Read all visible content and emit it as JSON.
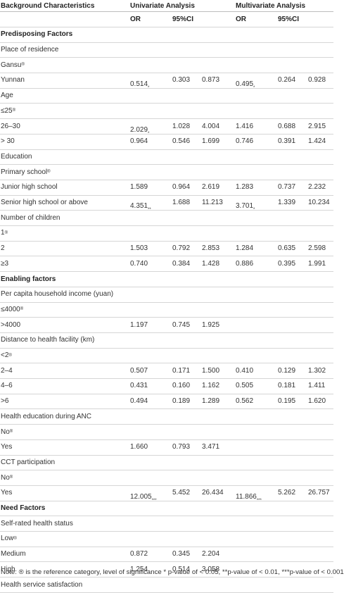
{
  "header": {
    "background": "Background Characteristics",
    "univariate": "Univariate Analysis",
    "multivariate": "Multivariate Analysis",
    "or_label": "OR",
    "ci_label": "95%CI"
  },
  "rows": [
    {
      "type": "group",
      "label": "Predisposing Factors"
    },
    {
      "type": "var",
      "label": "Place of residence"
    },
    {
      "type": "ref",
      "label": "Gansu",
      "sup": "®"
    },
    {
      "type": "data",
      "label": "Yunnan",
      "u_or": "0.514",
      "u_sig": "*",
      "u_lo": "0.303",
      "u_hi": "0.873",
      "m_or": "0.495",
      "m_sig": "*",
      "m_lo": "0.264",
      "m_hi": "0.928"
    },
    {
      "type": "var",
      "label": "Age"
    },
    {
      "type": "ref",
      "label": "≤25",
      "sup": "®"
    },
    {
      "type": "data",
      "label": "26–30",
      "u_or": "2.029",
      "u_sig": "*",
      "u_lo": "1.028",
      "u_hi": "4.004",
      "m_or": "1.416",
      "m_sig": "",
      "m_lo": "0.688",
      "m_hi": "2.915"
    },
    {
      "type": "data",
      "label": "> 30",
      "u_or": "0.964",
      "u_sig": "",
      "u_lo": "0.546",
      "u_hi": "1.699",
      "m_or": "0.746",
      "m_sig": "",
      "m_lo": "0.391",
      "m_hi": "1.424"
    },
    {
      "type": "var",
      "label": "Education"
    },
    {
      "type": "ref",
      "label": "Primary school",
      "sup": "®"
    },
    {
      "type": "data",
      "label": "Junior high school",
      "u_or": "1.589",
      "u_sig": "",
      "u_lo": "0.964",
      "u_hi": "2.619",
      "m_or": "1.283",
      "m_sig": "",
      "m_lo": "0.737",
      "m_hi": "2.232"
    },
    {
      "type": "data",
      "label": "Senior high school or above",
      "u_or": "4.351",
      "u_sig": "**",
      "u_lo": "1.688",
      "u_hi": "11.213",
      "m_or": "3.701",
      "m_sig": "*",
      "m_lo": "1.339",
      "m_hi": "10.234"
    },
    {
      "type": "var",
      "label": "Number of children"
    },
    {
      "type": "ref",
      "label": "1",
      "sup": "®"
    },
    {
      "type": "data",
      "label": "2",
      "u_or": "1.503",
      "u_sig": "",
      "u_lo": "0.792",
      "u_hi": "2.853",
      "m_or": "1.284",
      "m_sig": "",
      "m_lo": "0.635",
      "m_hi": "2.598"
    },
    {
      "type": "data",
      "label": "≥3",
      "u_or": "0.740",
      "u_sig": "",
      "u_lo": "0.384",
      "u_hi": "1.428",
      "m_or": "0.886",
      "m_sig": "",
      "m_lo": "0.395",
      "m_hi": "1.991"
    },
    {
      "type": "group",
      "label": "Enabling factors"
    },
    {
      "type": "var",
      "label": "Per capita household income (yuan)"
    },
    {
      "type": "ref",
      "label": "≤4000",
      "sup": "®"
    },
    {
      "type": "data",
      "label": ">4000",
      "u_or": "1.197",
      "u_sig": "",
      "u_lo": "0.745",
      "u_hi": "1.925",
      "m_or": "",
      "m_sig": "",
      "m_lo": "",
      "m_hi": ""
    },
    {
      "type": "var",
      "label": "Distance to health facility (km)"
    },
    {
      "type": "ref",
      "label": "<2",
      "sup": "®"
    },
    {
      "type": "data",
      "label": "2–4",
      "u_or": "0.507",
      "u_sig": "",
      "u_lo": "0.171",
      "u_hi": "1.500",
      "m_or": "0.410",
      "m_sig": "",
      "m_lo": "0.129",
      "m_hi": "1.302"
    },
    {
      "type": "data",
      "label": "4–6",
      "u_or": "0.431",
      "u_sig": "",
      "u_lo": "0.160",
      "u_hi": "1.162",
      "m_or": "0.505",
      "m_sig": "",
      "m_lo": "0.181",
      "m_hi": "1.411"
    },
    {
      "type": "data",
      "label": ">6",
      "u_or": "0.494",
      "u_sig": "",
      "u_lo": "0.189",
      "u_hi": "1.289",
      "m_or": "0.562",
      "m_sig": "",
      "m_lo": "0.195",
      "m_hi": "1.620"
    },
    {
      "type": "var",
      "label": "Health education during ANC"
    },
    {
      "type": "ref",
      "label": "No",
      "sup": "®"
    },
    {
      "type": "data",
      "label": "Yes",
      "u_or": "1.660",
      "u_sig": "",
      "u_lo": "0.793",
      "u_hi": "3.471",
      "m_or": "",
      "m_sig": "",
      "m_lo": "",
      "m_hi": ""
    },
    {
      "type": "var",
      "label": "CCT participation"
    },
    {
      "type": "ref",
      "label": "No",
      "sup": "®"
    },
    {
      "type": "data",
      "label": "Yes",
      "u_or": "12.005",
      "u_sig": "***",
      "u_lo": "5.452",
      "u_hi": "26.434",
      "m_or": "11.866",
      "m_sig": "***",
      "m_lo": "5.262",
      "m_hi": "26.757"
    },
    {
      "type": "group",
      "label": "Need Factors"
    },
    {
      "type": "var",
      "label": "Self-rated health status"
    },
    {
      "type": "ref",
      "label": "Low",
      "sup": "®"
    },
    {
      "type": "data",
      "label": "Medium",
      "u_or": "0.872",
      "u_sig": "",
      "u_lo": "0.345",
      "u_hi": "2.204",
      "m_or": "",
      "m_sig": "",
      "m_lo": "",
      "m_hi": ""
    },
    {
      "type": "data",
      "label": "High",
      "u_or": "1.254",
      "u_sig": "",
      "u_lo": "0.514",
      "u_hi": "3.058",
      "m_or": "",
      "m_sig": "",
      "m_lo": "",
      "m_hi": ""
    },
    {
      "type": "var",
      "label": "Health service satisfaction"
    }
  ],
  "note": "Note: ® is the reference category, level of significance * p-value of < 0.05, **p-value of < 0.01, ***p-value of < 0.001"
}
